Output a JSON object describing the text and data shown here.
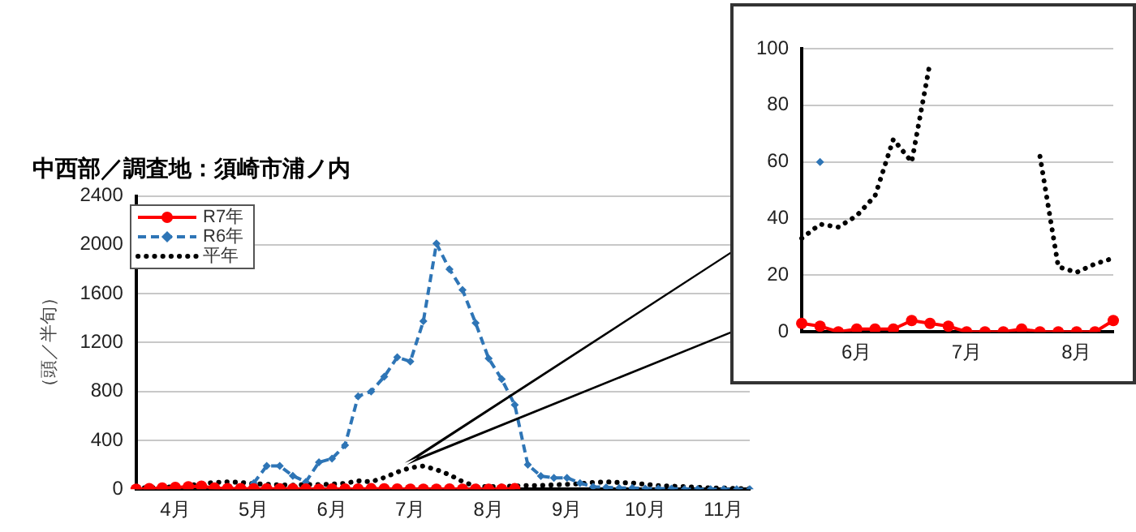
{
  "chart_data": [
    {
      "type": "line",
      "title": "中西部／調査地：須崎市浦ノ内",
      "ylabel": "（頭／半旬）",
      "categories": [
        null,
        null,
        null,
        "4月",
        null,
        null,
        null,
        null,
        null,
        "5月",
        null,
        null,
        null,
        null,
        null,
        "6月",
        null,
        null,
        null,
        null,
        null,
        "7月",
        null,
        null,
        null,
        null,
        null,
        "8月",
        null,
        null,
        null,
        null,
        null,
        "9月",
        null,
        null,
        null,
        null,
        null,
        "10月",
        null,
        null,
        null,
        null,
        null,
        "11月",
        null,
        null
      ],
      "series": [
        {
          "name": "R7年",
          "color": "#ff0000",
          "marker": "circle",
          "line_style": "solid",
          "values": [
            0,
            5,
            10,
            15,
            20,
            25,
            10,
            5,
            5,
            3,
            3,
            3,
            3,
            2,
            0,
            1,
            1,
            1,
            4,
            3,
            2,
            0,
            0,
            0,
            1,
            0,
            0,
            0,
            0,
            4,
            null,
            null,
            null,
            null,
            null,
            null,
            null,
            null,
            null,
            null,
            null,
            null,
            null,
            null,
            null,
            null,
            null,
            null
          ]
        },
        {
          "name": "R6年",
          "color": "#2e75b6",
          "marker": "diamond",
          "line_style": "dashed",
          "values": [
            null,
            null,
            null,
            null,
            null,
            null,
            null,
            null,
            null,
            50,
            190,
            190,
            110,
            60,
            220,
            250,
            360,
            760,
            800,
            920,
            1080,
            1045,
            1375,
            2010,
            1800,
            1630,
            1360,
            1070,
            900,
            690,
            200,
            107,
            93,
            93,
            50,
            20,
            15,
            10,
            10,
            5,
            5,
            5,
            0,
            0,
            0,
            0,
            0,
            0
          ]
        },
        {
          "name": "平年",
          "color": "#000000",
          "marker": "none",
          "line_style": "dotted",
          "values": [
            10,
            12,
            15,
            20,
            30,
            45,
            55,
            60,
            55,
            45,
            40,
            35,
            33,
            38,
            37,
            41,
            48,
            68,
            60,
            95,
            140,
            175,
            190,
            160,
            118,
            62,
            23,
            21,
            24,
            26,
            30,
            30,
            35,
            40,
            45,
            55,
            60,
            55,
            50,
            40,
            30,
            25,
            20,
            15,
            10,
            10,
            5,
            5
          ]
        }
      ],
      "ylim": [
        0,
        2400
      ],
      "yticks": [
        0,
        400,
        800,
        1200,
        1600,
        2000,
        2400
      ],
      "grid": "y",
      "legend": "top left"
    },
    {
      "type": "line",
      "categories": [
        null,
        null,
        null,
        "6月",
        null,
        null,
        null,
        null,
        null,
        "7月",
        null,
        null,
        null,
        null,
        null,
        "8月",
        null,
        null
      ],
      "series": [
        {
          "color": "#ff0000",
          "marker": "circle",
          "line_style": "solid",
          "values": [
            3,
            2,
            0,
            1,
            1,
            1,
            4,
            3,
            2,
            0,
            0,
            0,
            1,
            0,
            0,
            0,
            0,
            4
          ]
        },
        {
          "color": "#2e75b6",
          "marker": "diamond",
          "line_style": "dashed",
          "values": [
            null,
            60,
            null,
            null,
            null,
            null,
            null,
            null,
            null,
            null,
            null,
            null,
            null,
            null,
            null,
            null,
            null,
            null
          ]
        },
        {
          "color": "#000000",
          "marker": "none",
          "line_style": "dotted",
          "values": [
            33,
            38,
            37,
            41,
            48,
            68,
            60,
            95,
            null,
            null,
            null,
            null,
            null,
            62,
            23,
            21,
            24,
            26
          ]
        }
      ],
      "ylim": [
        0,
        100
      ],
      "yticks": [
        0,
        20,
        40,
        60,
        80,
        100
      ],
      "grid": "y"
    }
  ]
}
